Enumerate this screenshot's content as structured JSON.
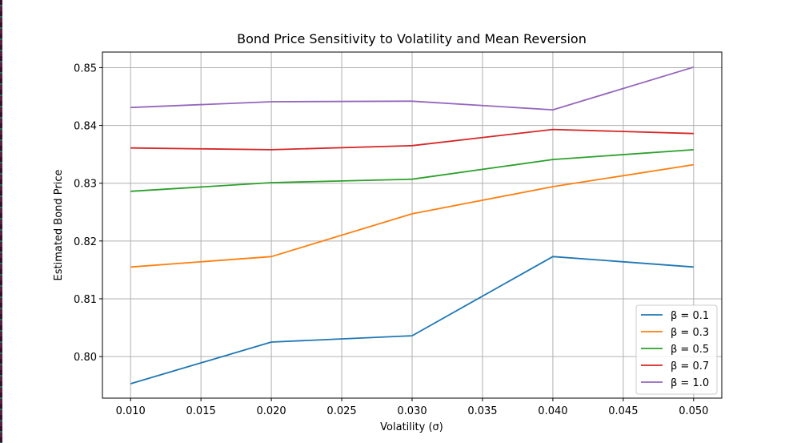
{
  "chart_data": {
    "type": "line",
    "title": "Bond Price Sensitivity to Volatility and Mean Reversion",
    "xlabel": "Volatility (σ)",
    "ylabel": "Estimated Bond Price",
    "x": [
      0.01,
      0.02,
      0.03,
      0.04,
      0.05
    ],
    "xlim": [
      0.008,
      0.052
    ],
    "ylim": [
      0.7928,
      0.8527
    ],
    "xticks": [
      0.01,
      0.015,
      0.02,
      0.025,
      0.03,
      0.035,
      0.04,
      0.045,
      0.05
    ],
    "xtick_labels": [
      "0.010",
      "0.015",
      "0.020",
      "0.025",
      "0.030",
      "0.035",
      "0.040",
      "0.045",
      "0.050"
    ],
    "yticks": [
      0.8,
      0.81,
      0.82,
      0.83,
      0.84,
      0.85
    ],
    "ytick_labels": [
      "0.80",
      "0.81",
      "0.82",
      "0.83",
      "0.84",
      "0.85"
    ],
    "grid": true,
    "legend_position": "bottom-right",
    "series": [
      {
        "name": "β = 0.1",
        "color": "#1f77b4",
        "values": [
          0.7953,
          0.8025,
          0.8036,
          0.8173,
          0.8155
        ]
      },
      {
        "name": "β = 0.3",
        "color": "#ff7f0e",
        "values": [
          0.8155,
          0.8173,
          0.8247,
          0.8294,
          0.8332
        ]
      },
      {
        "name": "β = 0.5",
        "color": "#2ca02c",
        "values": [
          0.8286,
          0.8301,
          0.8307,
          0.8341,
          0.8358
        ]
      },
      {
        "name": "β = 0.7",
        "color": "#d62728",
        "values": [
          0.8361,
          0.8358,
          0.8365,
          0.8393,
          0.8386
        ]
      },
      {
        "name": "β = 1.0",
        "color": "#9467bd",
        "values": [
          0.8431,
          0.8441,
          0.8442,
          0.8427,
          0.8501
        ]
      }
    ]
  }
}
